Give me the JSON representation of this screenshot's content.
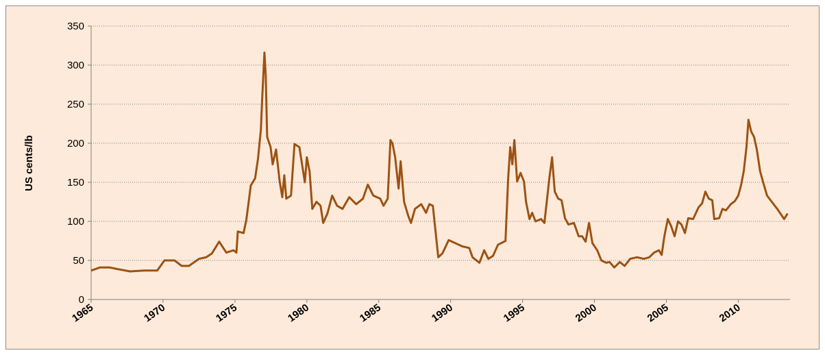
{
  "chart_data": {
    "type": "line",
    "y_label": "US cents/lb",
    "xlim": [
      1965,
      2013.6
    ],
    "xticks": [
      1965,
      1970,
      1975,
      1980,
      1985,
      1990,
      1995,
      2000,
      2005,
      2010
    ],
    "ylim": [
      0,
      350
    ],
    "yticks": [
      0,
      50,
      100,
      150,
      200,
      250,
      300,
      350
    ],
    "grid": true,
    "series": [
      {
        "color": "#9c5213",
        "x": [
          1965.0,
          1965.6,
          1966.3,
          1966.8,
          1967.7,
          1968.7,
          1969.6,
          1970.1,
          1970.8,
          1971.3,
          1971.8,
          1972.5,
          1973.0,
          1973.4,
          1973.9,
          1974.4,
          1974.9,
          1975.1,
          1975.2,
          1975.6,
          1975.8,
          1976.1,
          1976.4,
          1976.6,
          1976.8,
          1976.9,
          1977.05,
          1977.14,
          1977.24,
          1977.48,
          1977.62,
          1977.86,
          1978.1,
          1978.29,
          1978.43,
          1978.57,
          1978.9,
          1979.14,
          1979.48,
          1979.71,
          1979.86,
          1980.0,
          1980.19,
          1980.38,
          1980.67,
          1980.95,
          1981.14,
          1981.43,
          1981.76,
          1982.1,
          1982.48,
          1982.95,
          1983.43,
          1983.9,
          1984.24,
          1984.62,
          1985.1,
          1985.33,
          1985.62,
          1985.81,
          1985.95,
          1986.14,
          1986.38,
          1986.52,
          1986.76,
          1987.05,
          1987.24,
          1987.52,
          1987.95,
          1988.29,
          1988.52,
          1988.76,
          1989.14,
          1989.43,
          1989.86,
          1990.33,
          1990.81,
          1991.29,
          1991.52,
          1992.0,
          1992.33,
          1992.62,
          1992.95,
          1993.29,
          1993.81,
          1994.0,
          1994.14,
          1994.29,
          1994.43,
          1994.62,
          1994.86,
          1995.1,
          1995.24,
          1995.48,
          1995.67,
          1995.9,
          1996.29,
          1996.52,
          1996.86,
          1997.05,
          1997.24,
          1997.48,
          1997.71,
          1997.95,
          1998.19,
          1998.57,
          1998.9,
          1999.14,
          1999.38,
          1999.62,
          1999.86,
          2000.19,
          2000.48,
          2000.81,
          2001.05,
          2001.38,
          2001.76,
          2002.1,
          2002.48,
          2002.95,
          2003.43,
          2003.81,
          2004.14,
          2004.48,
          2004.67,
          2004.86,
          2005.1,
          2005.33,
          2005.57,
          2005.81,
          2006.05,
          2006.29,
          2006.52,
          2006.86,
          2007.24,
          2007.48,
          2007.71,
          2007.95,
          2008.19,
          2008.33,
          2008.67,
          2008.9,
          2009.14,
          2009.48,
          2009.76,
          2010.0,
          2010.19,
          2010.38,
          2010.57,
          2010.71,
          2010.9,
          2011.1,
          2011.29,
          2011.52,
          2011.76,
          2012.0,
          2012.33,
          2012.71,
          2013.19,
          2013.43
        ],
        "values": [
          37,
          41,
          41,
          39,
          36,
          37,
          37,
          50,
          50,
          43,
          43,
          52,
          54,
          59,
          74,
          60,
          63,
          60,
          87,
          85,
          103,
          146,
          155,
          180,
          217,
          260,
          316,
          287,
          208,
          195,
          173,
          192,
          153,
          131,
          159,
          129,
          133,
          199,
          195,
          168,
          150,
          182,
          164,
          116,
          125,
          120,
          98,
          110,
          133,
          120,
          116,
          131,
          122,
          129,
          147,
          133,
          129,
          120,
          129,
          204,
          200,
          182,
          142,
          177,
          125,
          107,
          98,
          116,
          122,
          111,
          122,
          120,
          54,
          59,
          76,
          72,
          68,
          66,
          54,
          47,
          63,
          52,
          56,
          70,
          75,
          155,
          195,
          173,
          204,
          151,
          162,
          151,
          125,
          103,
          111,
          100,
          103,
          98,
          155,
          182,
          138,
          129,
          127,
          104,
          96,
          98,
          81,
          81,
          74,
          98,
          72,
          63,
          50,
          47,
          48,
          41,
          48,
          43,
          52,
          54,
          52,
          54,
          60,
          63,
          57,
          81,
          103,
          94,
          81,
          100,
          96,
          85,
          104,
          103,
          118,
          123,
          138,
          129,
          127,
          103,
          104,
          116,
          114,
          122,
          126,
          133,
          146,
          164,
          195,
          230,
          215,
          208,
          192,
          164,
          148,
          133,
          125,
          116,
          103,
          110
        ]
      }
    ]
  }
}
